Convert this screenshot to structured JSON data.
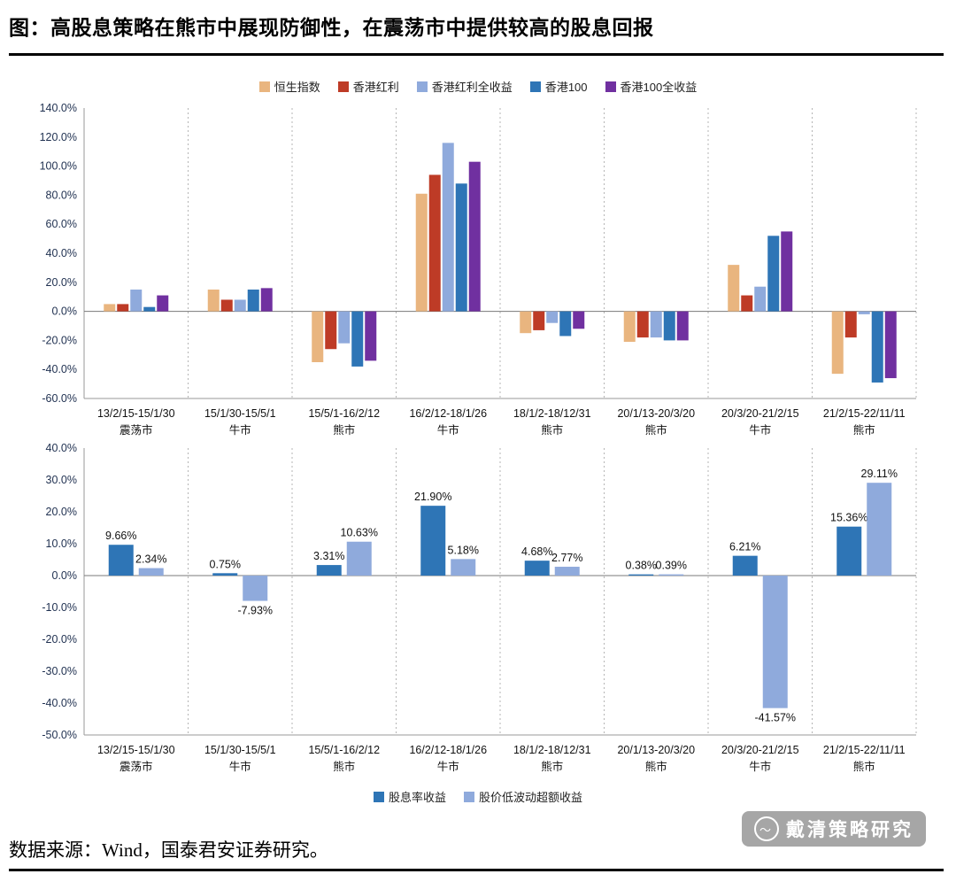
{
  "page": {
    "title": "图：高股息策略在熊市中展现防御性，在震荡市中提供较高的股息回报",
    "source": "数据来源：Wind，国泰君安证券研究。",
    "watermark": "戴清策略研究"
  },
  "chart_data": [
    {
      "type": "bar",
      "legend_position": "top",
      "grid": "vertical-dashed",
      "value_format": "percent",
      "ylim": [
        -60,
        140
      ],
      "yticks": [
        {
          "value": 140,
          "label": "140.0%"
        },
        {
          "value": 120,
          "label": "120.0%"
        },
        {
          "value": 100,
          "label": "100.0%"
        },
        {
          "value": 80,
          "label": "80.0%"
        },
        {
          "value": 60,
          "label": "60.0%"
        },
        {
          "value": 40,
          "label": "40.0%"
        },
        {
          "value": 20,
          "label": "20.0%"
        },
        {
          "value": 0,
          "label": "0.0%"
        },
        {
          "value": -20,
          "label": "-20.0%"
        },
        {
          "value": -40,
          "label": "-40.0%"
        },
        {
          "value": -60,
          "label": "-60.0%"
        }
      ],
      "categories": [
        {
          "period": "13/2/15-15/1/30",
          "phase": "震荡市"
        },
        {
          "period": "15/1/30-15/5/1",
          "phase": "牛市"
        },
        {
          "period": "15/5/1-16/2/12",
          "phase": "熊市"
        },
        {
          "period": "16/2/12-18/1/26",
          "phase": "牛市"
        },
        {
          "period": "18/1/2-18/12/31",
          "phase": "熊市"
        },
        {
          "period": "20/1/13-20/3/20",
          "phase": "熊市"
        },
        {
          "period": "20/3/20-21/2/15",
          "phase": "牛市"
        },
        {
          "period": "21/2/15-22/11/11",
          "phase": "熊市"
        }
      ],
      "series": [
        {
          "name": "恒生指数",
          "color": "#E9B57F",
          "values": [
            5,
            15,
            -35,
            81,
            -15,
            -21,
            32,
            -43
          ]
        },
        {
          "name": "香港红利",
          "color": "#BE3B26",
          "values": [
            5,
            8,
            -26,
            94,
            -13,
            -18,
            11,
            -18
          ]
        },
        {
          "name": "香港红利全收益",
          "color": "#8FAADC",
          "values": [
            15,
            8,
            -22,
            116,
            -8,
            -18,
            17,
            -2
          ]
        },
        {
          "name": "香港100",
          "color": "#2E75B6",
          "values": [
            3,
            15,
            -38,
            88,
            -17,
            -20,
            52,
            -49
          ]
        },
        {
          "name": "香港100全收益",
          "color": "#7030A0",
          "values": [
            11,
            16,
            -34,
            103,
            -12,
            -20,
            55,
            -46
          ]
        }
      ]
    },
    {
      "type": "bar",
      "legend_position": "bottom",
      "grid": "vertical-dashed",
      "value_format": "percent",
      "show_labels": true,
      "ylim": [
        -50,
        40
      ],
      "yticks": [
        {
          "value": 40,
          "label": "40.0%"
        },
        {
          "value": 30,
          "label": "30.0%"
        },
        {
          "value": 20,
          "label": "20.0%"
        },
        {
          "value": 10,
          "label": "10.0%"
        },
        {
          "value": 0,
          "label": "0.0%"
        },
        {
          "value": -10,
          "label": "-10.0%"
        },
        {
          "value": -20,
          "label": "-20.0%"
        },
        {
          "value": -30,
          "label": "-30.0%"
        },
        {
          "value": -40,
          "label": "-40.0%"
        },
        {
          "value": -50,
          "label": "-50.0%"
        }
      ],
      "categories": [
        {
          "period": "13/2/15-15/1/30",
          "phase": "震荡市"
        },
        {
          "period": "15/1/30-15/5/1",
          "phase": "牛市"
        },
        {
          "period": "15/5/1-16/2/12",
          "phase": "熊市"
        },
        {
          "period": "16/2/12-18/1/26",
          "phase": "牛市"
        },
        {
          "period": "18/1/2-18/12/31",
          "phase": "熊市"
        },
        {
          "period": "20/1/13-20/3/20",
          "phase": "熊市"
        },
        {
          "period": "20/3/20-21/2/15",
          "phase": "牛市"
        },
        {
          "period": "21/2/15-22/11/11",
          "phase": "熊市"
        }
      ],
      "series": [
        {
          "name": "股息率收益",
          "color": "#2E75B6",
          "values": [
            9.66,
            0.75,
            3.31,
            21.9,
            4.68,
            0.38,
            6.21,
            15.36
          ],
          "labels": [
            "9.66%",
            "0.75%",
            "3.31%",
            "21.90%",
            "4.68%",
            "0.38%",
            "6.21%",
            "15.36%"
          ]
        },
        {
          "name": "股价低波动超额收益",
          "color": "#8FAADC",
          "values": [
            2.34,
            -7.93,
            10.63,
            5.18,
            2.77,
            0.39,
            -41.57,
            29.11
          ],
          "labels": [
            "2.34%",
            "-7.93%",
            "10.63%",
            "5.18%",
            "2.77%",
            "0.39%",
            "-41.57%",
            "29.11%"
          ]
        }
      ]
    }
  ]
}
